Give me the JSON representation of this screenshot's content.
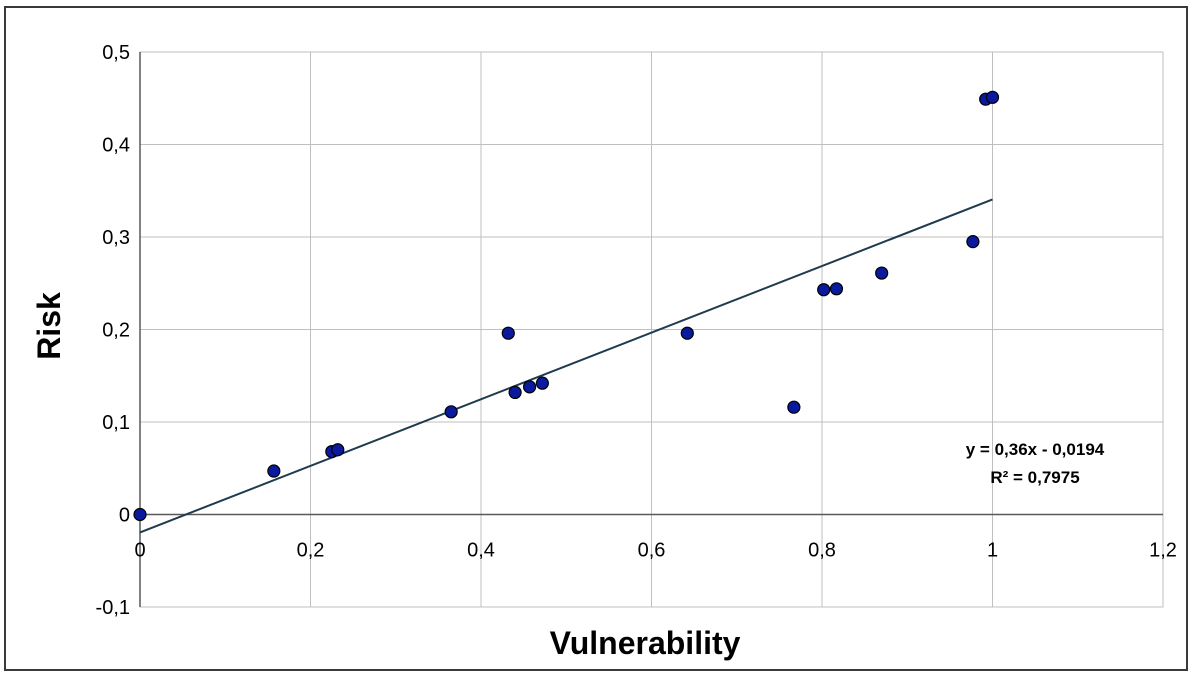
{
  "chart_data": {
    "type": "scatter",
    "xlabel": "Vulnerability",
    "ylabel": "Risk",
    "xlim": [
      0,
      1.2
    ],
    "ylim": [
      -0.1,
      0.5
    ],
    "x_ticks": [
      {
        "value": 0,
        "label": "0"
      },
      {
        "value": 0.2,
        "label": "0,2"
      },
      {
        "value": 0.4,
        "label": "0,4"
      },
      {
        "value": 0.6,
        "label": "0,6"
      },
      {
        "value": 0.8,
        "label": "0,8"
      },
      {
        "value": 1,
        "label": "1"
      },
      {
        "value": 1.2,
        "label": "1,2"
      }
    ],
    "y_ticks": [
      {
        "value": -0.1,
        "label": "-0,1"
      },
      {
        "value": 0,
        "label": "0"
      },
      {
        "value": 0.1,
        "label": "0,1"
      },
      {
        "value": 0.2,
        "label": "0,2"
      },
      {
        "value": 0.3,
        "label": "0,3"
      },
      {
        "value": 0.4,
        "label": "0,4"
      },
      {
        "value": 0.5,
        "label": "0,5"
      }
    ],
    "grid": true,
    "marker_color": "#0a1a9e",
    "marker_edge_color": "#000000",
    "trendline_color": "#1f3b4d",
    "points": [
      {
        "x": 0.0,
        "y": 0.0
      },
      {
        "x": 0.157,
        "y": 0.047
      },
      {
        "x": 0.225,
        "y": 0.068
      },
      {
        "x": 0.232,
        "y": 0.07
      },
      {
        "x": 0.365,
        "y": 0.111
      },
      {
        "x": 0.432,
        "y": 0.196
      },
      {
        "x": 0.44,
        "y": 0.132
      },
      {
        "x": 0.457,
        "y": 0.138
      },
      {
        "x": 0.472,
        "y": 0.142
      },
      {
        "x": 0.642,
        "y": 0.196
      },
      {
        "x": 0.767,
        "y": 0.116
      },
      {
        "x": 0.802,
        "y": 0.243
      },
      {
        "x": 0.817,
        "y": 0.244
      },
      {
        "x": 0.87,
        "y": 0.261
      },
      {
        "x": 0.977,
        "y": 0.295
      },
      {
        "x": 0.992,
        "y": 0.449
      },
      {
        "x": 1.0,
        "y": 0.451
      }
    ],
    "trendline": {
      "slope": 0.36,
      "intercept": -0.0194,
      "x_range": [
        0,
        1
      ],
      "equation_label": "y = 0,36x - 0,0194",
      "r2_label": "R² = 0,7975"
    }
  }
}
